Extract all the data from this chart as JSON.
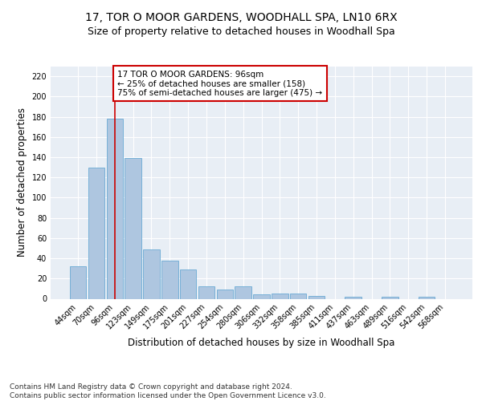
{
  "title": "17, TOR O MOOR GARDENS, WOODHALL SPA, LN10 6RX",
  "subtitle": "Size of property relative to detached houses in Woodhall Spa",
  "xlabel": "Distribution of detached houses by size in Woodhall Spa",
  "ylabel": "Number of detached properties",
  "categories": [
    "44sqm",
    "70sqm",
    "96sqm",
    "123sqm",
    "149sqm",
    "175sqm",
    "201sqm",
    "227sqm",
    "254sqm",
    "280sqm",
    "306sqm",
    "332sqm",
    "358sqm",
    "385sqm",
    "411sqm",
    "437sqm",
    "463sqm",
    "489sqm",
    "516sqm",
    "542sqm",
    "568sqm"
  ],
  "values": [
    32,
    130,
    178,
    139,
    49,
    38,
    29,
    12,
    9,
    12,
    4,
    5,
    5,
    3,
    0,
    2,
    0,
    2,
    0,
    2,
    0
  ],
  "bar_color": "#aec6e0",
  "bar_edge_color": "#6aaad4",
  "highlight_bar_index": 2,
  "highlight_line_color": "#cc0000",
  "annotation_text": "17 TOR O MOOR GARDENS: 96sqm\n← 25% of detached houses are smaller (158)\n75% of semi-detached houses are larger (475) →",
  "annotation_box_color": "#ffffff",
  "annotation_box_edge_color": "#cc0000",
  "ylim": [
    0,
    230
  ],
  "yticks": [
    0,
    20,
    40,
    60,
    80,
    100,
    120,
    140,
    160,
    180,
    200,
    220
  ],
  "background_color": "#e8eef5",
  "figure_color": "#ffffff",
  "footer_text": "Contains HM Land Registry data © Crown copyright and database right 2024.\nContains public sector information licensed under the Open Government Licence v3.0.",
  "title_fontsize": 10,
  "subtitle_fontsize": 9,
  "xlabel_fontsize": 8.5,
  "ylabel_fontsize": 8.5,
  "tick_fontsize": 7,
  "annotation_fontsize": 7.5,
  "footer_fontsize": 6.5
}
